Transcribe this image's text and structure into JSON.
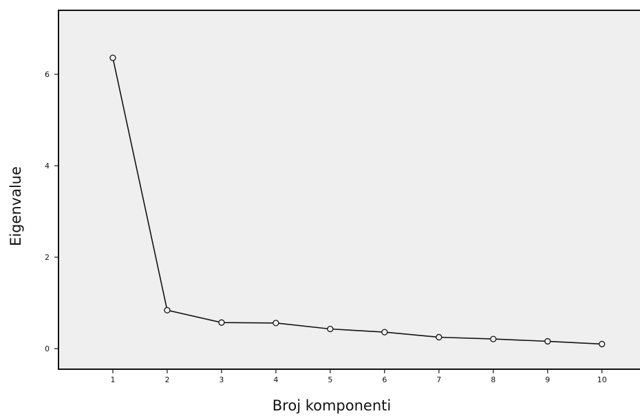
{
  "chart_data": {
    "type": "line",
    "title": "",
    "xlabel": "Broj komponenti",
    "ylabel": "Eigenvalue",
    "x": [
      1,
      2,
      3,
      4,
      5,
      6,
      7,
      8,
      9,
      10
    ],
    "xticks": [
      "1",
      "2",
      "3",
      "4",
      "5",
      "6",
      "7",
      "8",
      "9",
      "10"
    ],
    "yticks": [
      "0",
      "2",
      "4",
      "6"
    ],
    "ytick_values": [
      0,
      2,
      4,
      6
    ],
    "xlim": [
      0,
      10.7
    ],
    "ylim": [
      -0.45,
      7.4
    ],
    "series": [
      {
        "values": [
          6.36,
          0.84,
          0.57,
          0.56,
          0.43,
          0.36,
          0.25,
          0.21,
          0.16,
          0.1
        ]
      }
    ],
    "grid": false,
    "legend": "none",
    "colors": {
      "plot_background": "#efefef",
      "line": "#111111",
      "marker_fill": "#efefef"
    }
  }
}
